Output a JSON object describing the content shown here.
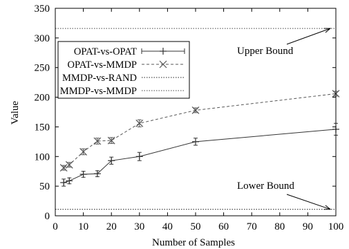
{
  "chart_data": {
    "type": "line",
    "title": "",
    "xlabel": "Number of Samples",
    "ylabel": "Value",
    "xlim": [
      0,
      100
    ],
    "ylim": [
      0,
      350
    ],
    "xticks": [
      0,
      10,
      20,
      30,
      40,
      50,
      60,
      70,
      80,
      90,
      100
    ],
    "yticks": [
      0,
      50,
      100,
      150,
      200,
      250,
      300,
      350
    ],
    "grid": false,
    "legend_position": "top-left",
    "series": [
      {
        "name": "OPAT-vs-OPAT",
        "style": "solid-errorbars",
        "marker": "plus",
        "color": "#333333",
        "x": [
          3,
          5,
          10,
          15,
          20,
          30,
          50,
          100
        ],
        "y": [
          56,
          59,
          70,
          71,
          93,
          100,
          125,
          146
        ],
        "err": [
          6,
          5,
          5,
          5,
          6,
          7,
          6,
          10
        ]
      },
      {
        "name": "OPAT-vs-MMDP",
        "style": "dashed",
        "marker": "cross",
        "color": "#555555",
        "x": [
          3,
          5,
          10,
          15,
          20,
          30,
          50,
          100
        ],
        "y": [
          81,
          86,
          108,
          126,
          127,
          156,
          178,
          206
        ],
        "err": [
          4,
          4,
          5,
          5,
          5,
          6,
          4,
          4
        ]
      },
      {
        "name": "MMDP-vs-RAND",
        "style": "dotted",
        "marker": "none",
        "color": "#222222",
        "constant": 11
      },
      {
        "name": "MMDP-vs-MMDP",
        "style": "dotted",
        "marker": "none",
        "color": "#444444",
        "constant": 316
      }
    ],
    "annotations": [
      {
        "text": "Upper Bound",
        "points_to": [
          98,
          316
        ]
      },
      {
        "text": "Lower Bound",
        "points_to": [
          98,
          11
        ]
      }
    ]
  }
}
